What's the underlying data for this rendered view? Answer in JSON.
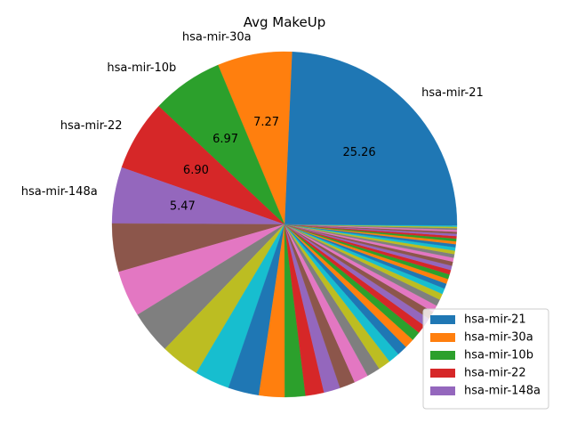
{
  "chart_data": {
    "type": "pie",
    "title": "Avg MakeUp",
    "start_angle_deg": 0,
    "direction": "counterclockwise",
    "named_slices": [
      {
        "label": "hsa-mir-21",
        "value": 25.26,
        "value_label": "25.26",
        "color": "#1f77b4"
      },
      {
        "label": "hsa-mir-30a",
        "value": 7.27,
        "value_label": "7.27",
        "color": "#ff7f0e"
      },
      {
        "label": "hsa-mir-10b",
        "value": 6.97,
        "value_label": "6.97",
        "color": "#2ca02c"
      },
      {
        "label": "hsa-mir-22",
        "value": 6.9,
        "value_label": "6.90",
        "color": "#d62728"
      },
      {
        "label": "hsa-mir-148a",
        "value": 5.47,
        "value_label": "5.47",
        "color": "#9467bd"
      }
    ],
    "unlabeled_slice_values": [
      4.7,
      4.5,
      4.2,
      3.8,
      3.4,
      3.0,
      2.5,
      2.0,
      1.8,
      1.6,
      1.5,
      1.4,
      1.3,
      1.2,
      1.1,
      1.0,
      0.95,
      0.9,
      0.85,
      0.8,
      0.75,
      0.7,
      0.65,
      0.6,
      0.55,
      0.5,
      0.48,
      0.46,
      0.44,
      0.42,
      0.4,
      0.38,
      0.36,
      0.34,
      0.32,
      0.3,
      0.28,
      0.26,
      0.24,
      0.22,
      0.2,
      0.18,
      0.16,
      0.14,
      0.12,
      0.1
    ],
    "legend_entries": [
      "hsa-mir-21",
      "hsa-mir-30a",
      "hsa-mir-10b",
      "hsa-mir-22",
      "hsa-mir-148a"
    ],
    "legend_position": "lower-right",
    "palette": [
      "#1f77b4",
      "#ff7f0e",
      "#2ca02c",
      "#d62728",
      "#9467bd",
      "#8c564b",
      "#e377c2",
      "#7f7f7f",
      "#bcbd22",
      "#17becf"
    ]
  }
}
